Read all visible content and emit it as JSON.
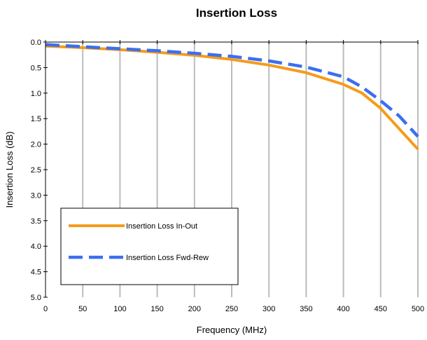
{
  "chart_data": {
    "type": "line",
    "title": "Insertion Loss",
    "xlabel": "Frequency (MHz)",
    "ylabel": "Insertion Loss (dB)",
    "xlim": [
      0,
      500
    ],
    "ylim": [
      0,
      5
    ],
    "y_inverted": true,
    "x_ticks": [
      0,
      50,
      100,
      150,
      200,
      250,
      300,
      350,
      400,
      450,
      500
    ],
    "x_tick_labels": [
      "0",
      "50",
      "100",
      "150",
      "200",
      "250",
      "300",
      "350",
      "400",
      "450",
      "500"
    ],
    "y_ticks": [
      0,
      0.5,
      1,
      1.5,
      2,
      2.5,
      3,
      3.5,
      4,
      4.5,
      5
    ],
    "y_tick_labels": [
      "0.0",
      "0.5",
      "1.0",
      "1.5",
      "2.0",
      "2.5",
      "3.0",
      "3.5",
      "4.0",
      "4.5",
      "5.0"
    ],
    "grid": {
      "vertical": true,
      "horizontal": false
    },
    "legend_position": "bottom-left",
    "series": [
      {
        "name": "Insertion Loss In-Out",
        "color": "#f59b1a",
        "style": "solid",
        "x": [
          0,
          50,
          100,
          150,
          200,
          250,
          300,
          350,
          400,
          425,
          450,
          475,
          500
        ],
        "y": [
          0.08,
          0.11,
          0.15,
          0.2,
          0.26,
          0.34,
          0.45,
          0.6,
          0.83,
          1.0,
          1.3,
          1.7,
          2.1
        ]
      },
      {
        "name": "Insertion Loss Fwd-Rew",
        "color": "#3a6ff0",
        "style": "dashed",
        "x": [
          0,
          50,
          100,
          150,
          200,
          250,
          300,
          350,
          400,
          425,
          450,
          475,
          500
        ],
        "y": [
          0.05,
          0.09,
          0.13,
          0.17,
          0.22,
          0.28,
          0.37,
          0.49,
          0.68,
          0.88,
          1.15,
          1.45,
          1.85
        ]
      }
    ]
  }
}
